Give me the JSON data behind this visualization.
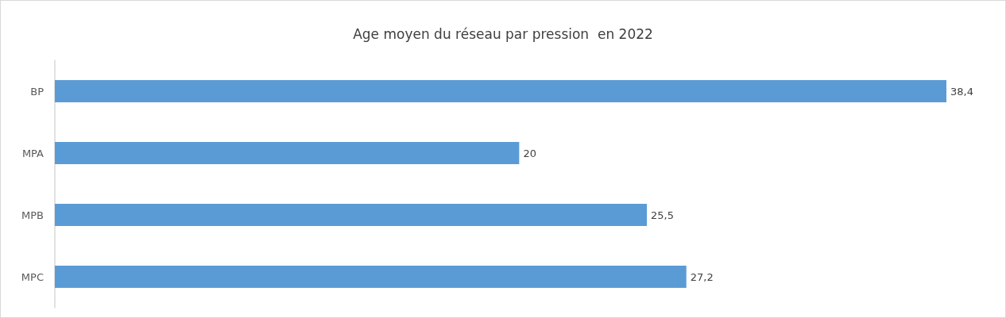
{
  "chart_data": {
    "type": "bar",
    "orientation": "horizontal",
    "title": "Age moyen du réseau par pression  en 2022",
    "categories": [
      "BP",
      "MPA",
      "MPB",
      "MPC"
    ],
    "values": [
      38.4,
      20,
      25.5,
      27.2
    ],
    "value_labels": [
      "38,4",
      "20",
      "25,5",
      "27,2"
    ],
    "color": "#5b9bd5",
    "tick_labels": "y",
    "grid": false
  }
}
